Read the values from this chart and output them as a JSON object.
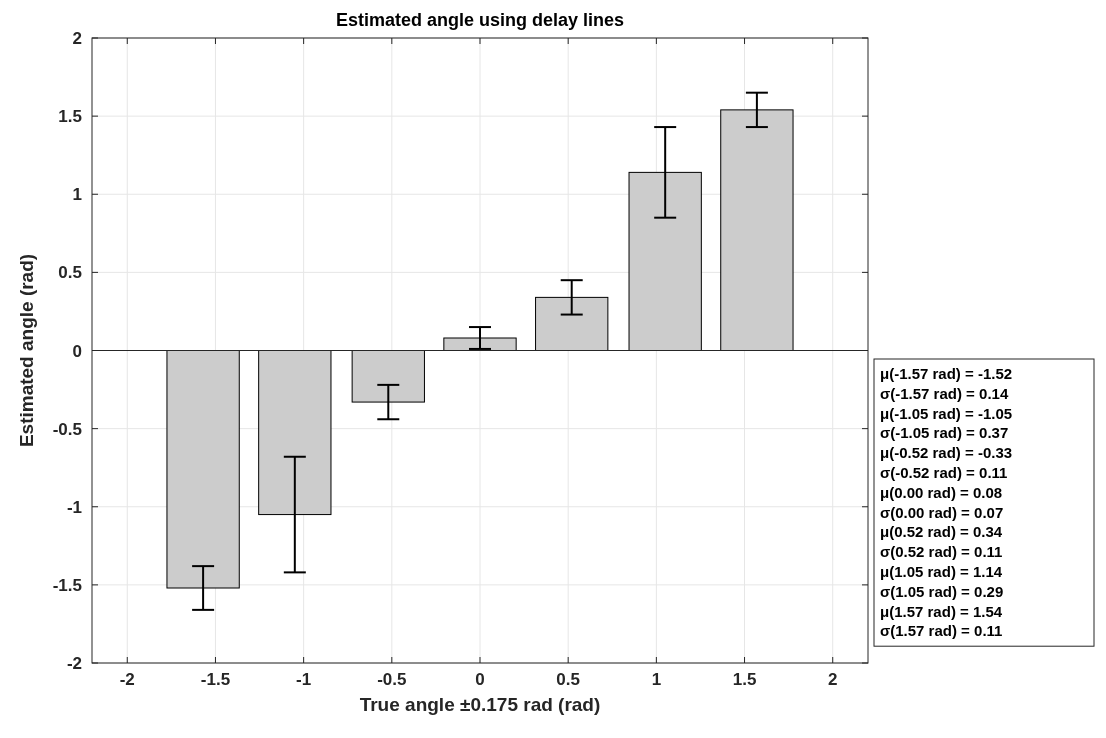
{
  "chart_data": {
    "type": "bar",
    "title": "Estimated angle using delay lines",
    "xlabel": "True angle ±0.175 rad (rad)",
    "ylabel": "Estimated angle (rad)",
    "x": [
      -1.57,
      -1.05,
      -0.52,
      0,
      0.52,
      1.05,
      1.57
    ],
    "values": [
      -1.52,
      -1.05,
      -0.33,
      0.08,
      0.34,
      1.14,
      1.54
    ],
    "errors": [
      0.14,
      0.37,
      0.11,
      0.07,
      0.11,
      0.29,
      0.11
    ],
    "color": "#cccccc",
    "xlim": [
      -2.2,
      2.2
    ],
    "xticks": [
      -2,
      -1.5,
      -1,
      -0.5,
      0,
      0.5,
      1,
      1.5,
      2
    ],
    "ylim": [
      -2,
      2
    ],
    "yticks": [
      -2,
      -1.5,
      -1,
      -0.5,
      0,
      0.5,
      1,
      1.5,
      2
    ],
    "grid": true,
    "ref_lines": [
      {
        "axis": "y",
        "value": 0,
        "color": "#262626"
      }
    ],
    "annotations": [
      "μ(-1.57 rad) = -1.52",
      "σ(-1.57 rad) = 0.14",
      "μ(-1.05 rad) = -1.05",
      "σ(-1.05 rad) = 0.37",
      "μ(-0.52 rad) = -0.33",
      "σ(-0.52 rad) = 0.11",
      "μ(0.00 rad) = 0.08",
      "σ(0.00 rad) = 0.07",
      "μ(0.52 rad) = 0.34",
      "σ(0.52 rad) = 0.11",
      "μ(1.05 rad) = 1.14",
      "σ(1.05 rad) = 0.29",
      "μ(1.57 rad) = 1.54",
      "σ(1.57 rad) = 0.11"
    ]
  }
}
